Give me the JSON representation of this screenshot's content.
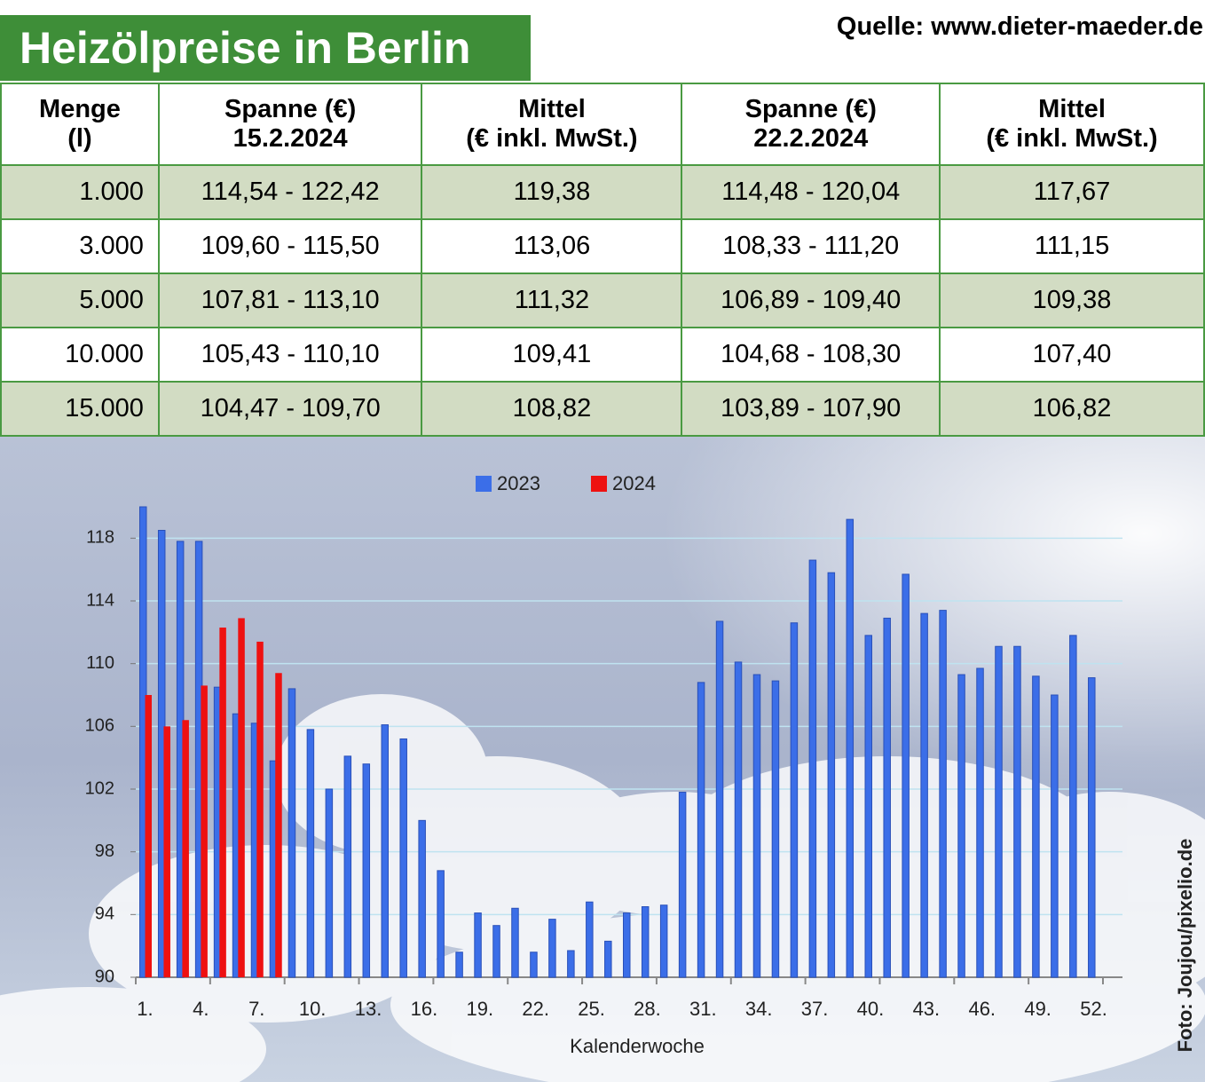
{
  "title": "Heizölpreise in Berlin",
  "source": "Quelle: www.dieter-maeder.de",
  "credit": "Foto: Joujou/pixelio.de",
  "table": {
    "headers": [
      [
        "Menge",
        "(l)"
      ],
      [
        "Spanne (€)",
        "15.2.2024"
      ],
      [
        "Mittel",
        "(€ inkl. MwSt.)"
      ],
      [
        "Spanne (€)",
        "22.2.2024"
      ],
      [
        "Mittel",
        "(€ inkl. MwSt.)"
      ]
    ],
    "rows": [
      [
        "1.000",
        "114,54 - 122,42",
        "119,38",
        "114,48 - 120,04",
        "117,67"
      ],
      [
        "3.000",
        "109,60 - 115,50",
        "113,06",
        "108,33 - 111,20",
        "111,15"
      ],
      [
        "5.000",
        "107,81 - 113,10",
        "111,32",
        "106,89 - 109,40",
        "109,38"
      ],
      [
        "10.000",
        "105,43 - 110,10",
        "109,41",
        "104,68 - 108,30",
        "107,40"
      ],
      [
        "15.000",
        "104,47 - 109,70",
        "108,82",
        "103,89 - 107,90",
        "106,82"
      ]
    ]
  },
  "chart_data": {
    "type": "bar",
    "xlabel": "Kalenderwoche",
    "categories": [
      "1.",
      null,
      null,
      "4.",
      null,
      null,
      "7.",
      null,
      null,
      "10.",
      null,
      null,
      "13.",
      null,
      null,
      "16.",
      null,
      null,
      "19.",
      null,
      null,
      "22.",
      null,
      null,
      "25.",
      null,
      null,
      "28.",
      null,
      null,
      "31.",
      null,
      null,
      "34.",
      null,
      null,
      "37.",
      null,
      null,
      "40.",
      null,
      null,
      "43.",
      null,
      null,
      "46.",
      null,
      null,
      "49.",
      null,
      null,
      "52."
    ],
    "series": [
      {
        "name": "2023",
        "color": "#3b6ee8",
        "values": [
          120.0,
          118.5,
          117.8,
          117.8,
          108.5,
          106.8,
          106.2,
          103.8,
          108.4,
          105.8,
          102.0,
          104.1,
          103.6,
          106.1,
          105.2,
          100.0,
          96.8,
          91.6,
          94.1,
          93.3,
          94.4,
          91.6,
          93.7,
          91.7,
          94.8,
          92.3,
          94.1,
          94.5,
          94.6,
          101.8,
          108.8,
          112.7,
          110.1,
          109.3,
          108.9,
          112.6,
          116.6,
          115.8,
          119.2,
          111.8,
          112.9,
          115.7,
          113.2,
          113.4,
          109.3,
          109.7,
          111.1,
          111.1,
          109.2,
          108.0,
          111.8,
          109.1
        ]
      },
      {
        "name": "2024",
        "color": "#ee1111",
        "values": [
          108.0,
          106.0,
          106.4,
          108.6,
          112.3,
          112.9,
          111.4,
          109.4,
          null,
          null,
          null,
          null,
          null,
          null,
          null,
          null,
          null,
          null,
          null,
          null,
          null,
          null,
          null,
          null,
          null,
          null,
          null,
          null,
          null,
          null,
          null,
          null,
          null,
          null,
          null,
          null,
          null,
          null,
          null,
          null,
          null,
          null,
          null,
          null,
          null,
          null,
          null,
          null,
          null,
          null,
          null,
          null
        ]
      }
    ],
    "ylim": [
      90,
      120
    ],
    "yticks": [
      90,
      94,
      98,
      102,
      106,
      110,
      114,
      118
    ],
    "grid": true,
    "legend": "top"
  }
}
